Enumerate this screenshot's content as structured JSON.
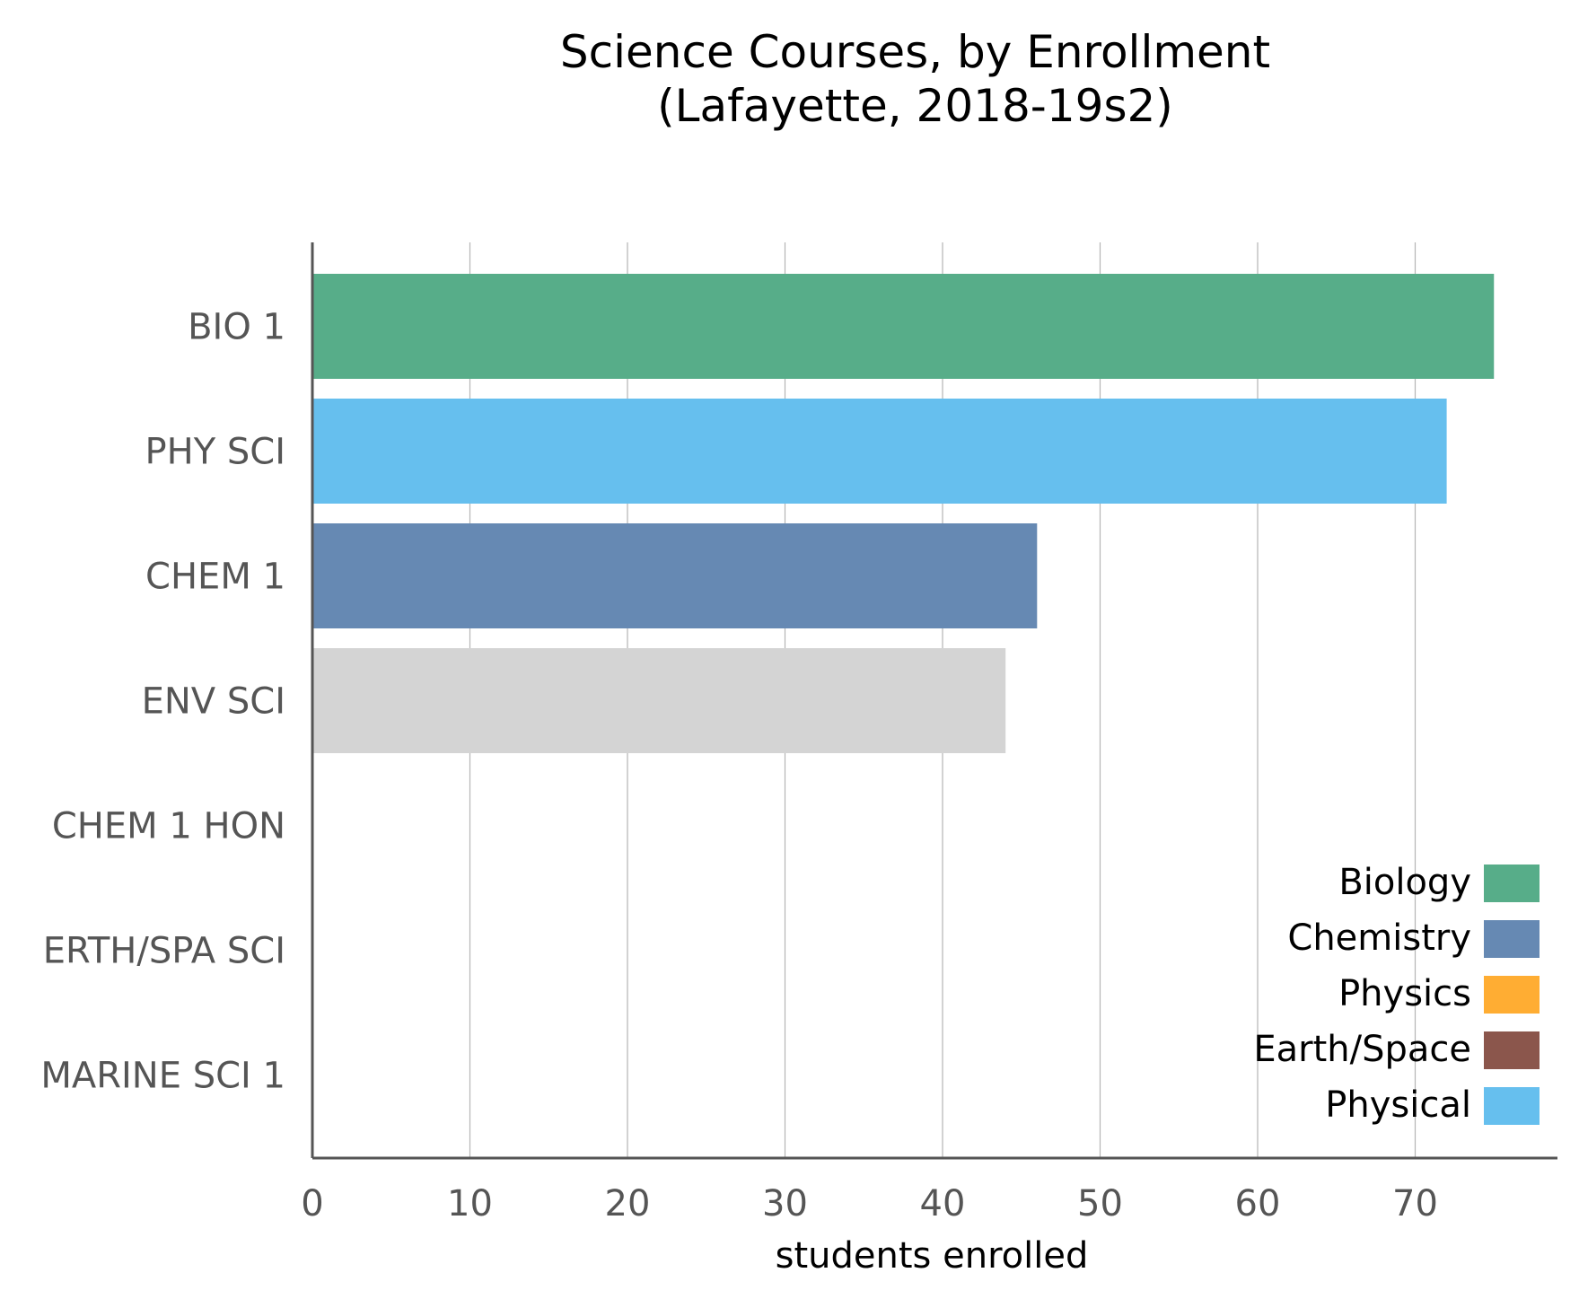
{
  "chart_data": {
    "type": "bar",
    "orientation": "horizontal",
    "title_line1": "Science Courses, by Enrollment",
    "title_line2": "(Lafayette, 2018-19s2)",
    "xlabel": "students enrolled",
    "ylabel": "",
    "xlim": [
      0,
      79
    ],
    "xticks": [
      0,
      10,
      20,
      30,
      40,
      50,
      60,
      70
    ],
    "grid": "vertical",
    "legend_position": "bottom-right",
    "categories": [
      "BIO 1",
      "PHY SCI",
      "CHEM 1",
      "ENV SCI",
      "CHEM 1 HON",
      "ERTH/SPA SCI",
      "MARINE SCI 1"
    ],
    "values": [
      75,
      72,
      46,
      44,
      0,
      0,
      0
    ],
    "bar_colors": [
      "#57ad89",
      "#66bfee",
      "#6689b3",
      "#d4d4d4",
      "#d4d4d4",
      "#d4d4d4",
      "#d4d4d4"
    ],
    "legend": [
      {
        "label": "Biology",
        "color": "#57ad89"
      },
      {
        "label": "Chemistry",
        "color": "#6689b3"
      },
      {
        "label": "Physics",
        "color": "#ffad33"
      },
      {
        "label": "Earth/Space",
        "color": "#8b564c"
      },
      {
        "label": "Physical",
        "color": "#66bfee"
      }
    ]
  }
}
